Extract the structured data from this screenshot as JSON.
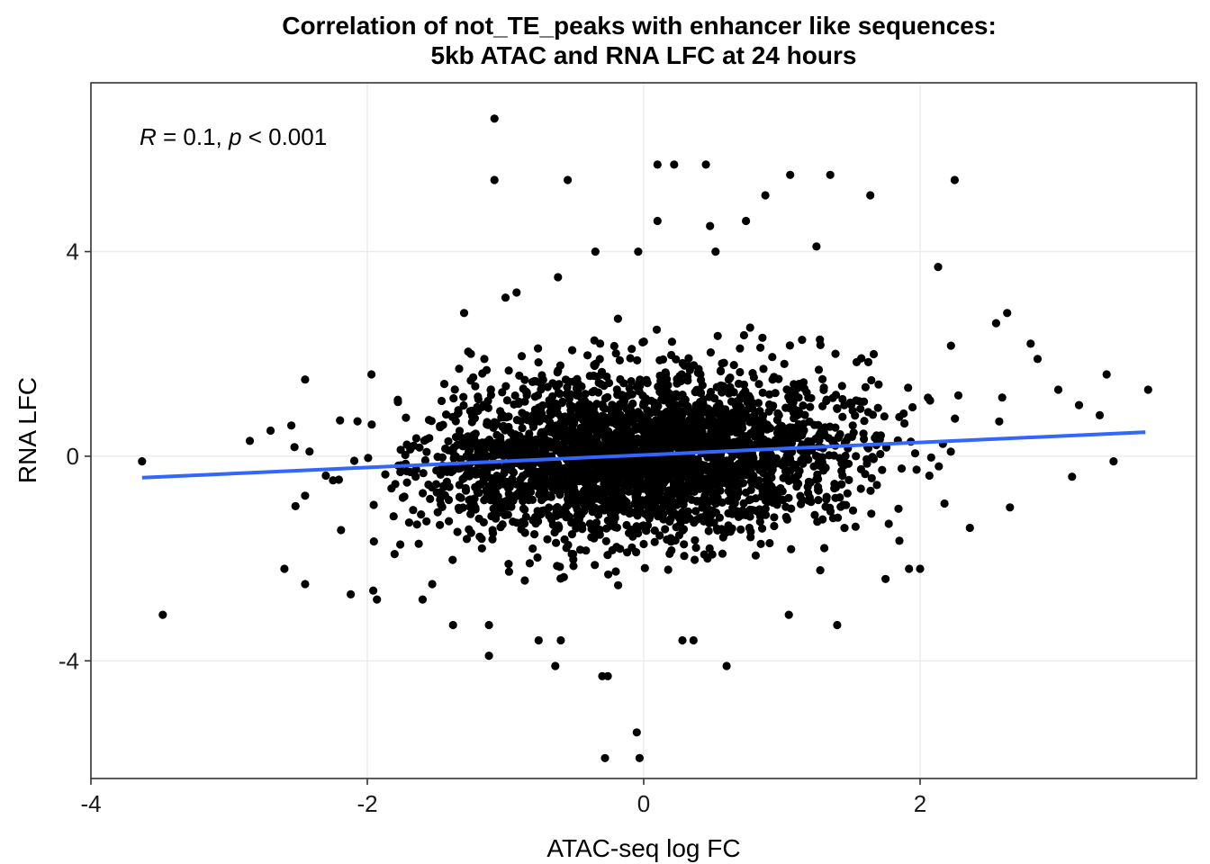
{
  "chart_data": {
    "type": "scatter",
    "title_line1": "Correlation of not_TE_peaks with enhancer like sequences:",
    "title_line2": "5kb ATAC and RNA LFC at 24 hours",
    "xlabel": "ATAC-seq log FC",
    "ylabel": "RNA LFC",
    "xlim": [
      -4.0,
      4.0
    ],
    "ylim": [
      -6.3,
      7.3
    ],
    "x_ticks": [
      -4,
      -2,
      0,
      2
    ],
    "x_tick_labels": [
      "-4",
      "-2",
      "0",
      "2"
    ],
    "y_ticks": [
      -4,
      0,
      4
    ],
    "y_tick_labels": [
      "-4",
      "0",
      "4"
    ],
    "grid": true,
    "annotation": {
      "r_symbol": "R",
      "r_text": " = 0.1, ",
      "p_symbol": "p",
      "p_text": " < 0.001"
    },
    "fit_line": {
      "x": [
        -3.63,
        3.63
      ],
      "y": [
        -0.42,
        0.47
      ]
    },
    "colors": {
      "points": "#000000",
      "fit": "#3366ff"
    },
    "n_points": 3000,
    "points": [
      [
        -1.08,
        6.6
      ],
      [
        -1.08,
        5.4
      ],
      [
        -0.55,
        5.4
      ],
      [
        0.1,
        5.7
      ],
      [
        0.22,
        5.7
      ],
      [
        0.45,
        5.7
      ],
      [
        1.06,
        5.5
      ],
      [
        1.35,
        5.5
      ],
      [
        1.64,
        5.1
      ],
      [
        2.25,
        5.4
      ],
      [
        0.88,
        5.1
      ],
      [
        0.1,
        4.6
      ],
      [
        0.74,
        4.6
      ],
      [
        0.48,
        4.5
      ],
      [
        -0.35,
        4.0
      ],
      [
        -0.04,
        4.0
      ],
      [
        0.52,
        4.0
      ],
      [
        1.25,
        4.1
      ],
      [
        2.13,
        3.7
      ],
      [
        -0.62,
        3.5
      ],
      [
        -0.92,
        3.2
      ],
      [
        -1.0,
        3.1
      ],
      [
        -1.3,
        2.8
      ],
      [
        2.63,
        2.8
      ],
      [
        2.55,
        2.6
      ],
      [
        2.8,
        2.2
      ],
      [
        2.85,
        1.9
      ],
      [
        3.35,
        1.6
      ],
      [
        3.65,
        1.3
      ],
      [
        3.0,
        1.3
      ],
      [
        3.15,
        1.0
      ],
      [
        3.3,
        0.8
      ],
      [
        -1.97,
        1.6
      ],
      [
        -2.45,
        1.5
      ],
      [
        -2.55,
        0.6
      ],
      [
        -2.7,
        0.5
      ],
      [
        -3.63,
        -0.1
      ],
      [
        -2.85,
        0.3
      ],
      [
        -2.6,
        -2.2
      ],
      [
        -2.45,
        -2.5
      ],
      [
        -3.48,
        -3.1
      ],
      [
        -2.12,
        -2.7
      ],
      [
        -1.93,
        -2.8
      ],
      [
        -1.6,
        -2.8
      ],
      [
        -1.53,
        -2.5
      ],
      [
        -1.38,
        -3.3
      ],
      [
        -1.12,
        -3.3
      ],
      [
        -1.12,
        -3.9
      ],
      [
        -0.76,
        -3.6
      ],
      [
        -0.6,
        -3.6
      ],
      [
        -0.64,
        -4.1
      ],
      [
        -0.3,
        -4.3
      ],
      [
        -0.26,
        -4.3
      ],
      [
        -0.05,
        -5.4
      ],
      [
        -0.03,
        -5.9
      ],
      [
        -0.28,
        -5.9
      ],
      [
        0.6,
        -4.1
      ],
      [
        0.36,
        -3.6
      ],
      [
        0.28,
        -3.6
      ],
      [
        1.4,
        -3.3
      ],
      [
        1.05,
        -3.1
      ],
      [
        1.75,
        -2.4
      ],
      [
        1.92,
        -2.2
      ],
      [
        2.0,
        -2.2
      ],
      [
        2.36,
        -1.4
      ],
      [
        2.65,
        -1.0
      ],
      [
        3.4,
        -0.1
      ],
      [
        3.1,
        -0.4
      ]
    ]
  }
}
